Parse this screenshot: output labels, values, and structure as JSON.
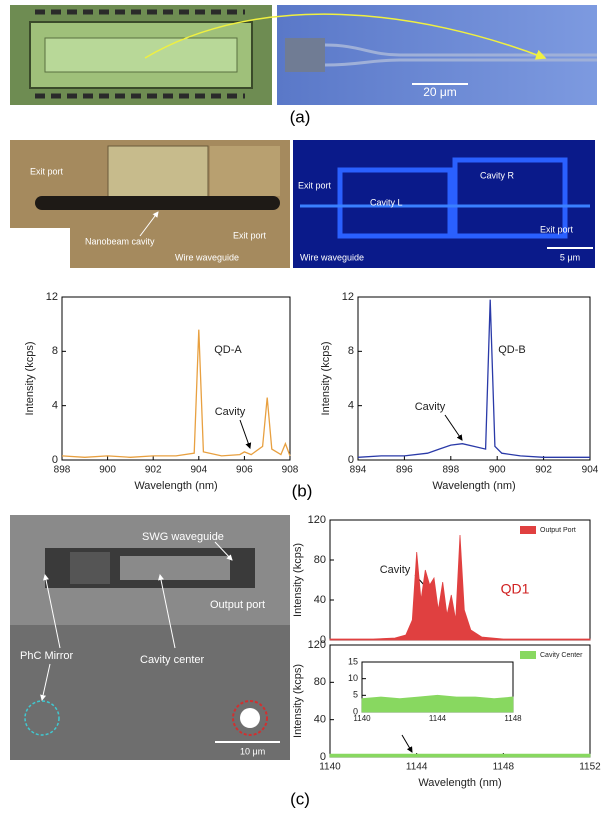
{
  "panels": {
    "a": {
      "label": "(a)",
      "scale": "20 μm"
    },
    "b": {
      "label": "(b)",
      "left": [
        "Exit port",
        "Nanobeam cavity",
        "Wire waveguide",
        "Exit port"
      ],
      "right": [
        "Exit port",
        "Cavity L",
        "Cavity R",
        "Exit port",
        "Wire waveguide",
        "5 μm"
      ]
    },
    "c": {
      "label": "(c)",
      "image": [
        "SWG waveguide",
        "Output port",
        "PhC Mirror",
        "Cavity center",
        "10 μm"
      ]
    }
  },
  "chart_data": [
    {
      "type": "line",
      "xlabel": "Wavelength (nm)",
      "ylabel": "Intensity (kcps)",
      "xlim": [
        898,
        908
      ],
      "xticks": [
        898,
        900,
        902,
        904,
        906,
        908
      ],
      "ylim": [
        0,
        12
      ],
      "yticks": [
        0,
        4,
        8,
        12
      ],
      "annotations": [
        "QD-A",
        "Cavity"
      ],
      "x": [
        898,
        899,
        900,
        901,
        902,
        903,
        903.8,
        904,
        904.2,
        905,
        905.8,
        906,
        906.3,
        906.8,
        907,
        907.2,
        907.6,
        907.8,
        908
      ],
      "series": [
        {
          "color": "#e8a040",
          "values": [
            0.3,
            0.2,
            0.3,
            0.2,
            0.3,
            0.3,
            0.5,
            9.6,
            0.6,
            0.3,
            0.4,
            0.6,
            0.4,
            1,
            4.6,
            0.8,
            0.4,
            1.2,
            0.3
          ]
        }
      ]
    },
    {
      "type": "line",
      "xlabel": "Wavelength (nm)",
      "ylabel": "Intensity (kcps)",
      "xlim": [
        894,
        904
      ],
      "xticks": [
        894,
        896,
        898,
        900,
        902,
        904
      ],
      "ylim": [
        0,
        12
      ],
      "yticks": [
        0,
        4,
        8,
        12
      ],
      "annotations": [
        "QD-B",
        "Cavity"
      ],
      "x": [
        894,
        895,
        896,
        897,
        897.5,
        898,
        898.5,
        899,
        899.5,
        899.7,
        899.9,
        900.2,
        901,
        902,
        903,
        904
      ],
      "series": [
        {
          "color": "#2a3aa8",
          "values": [
            0.2,
            0.3,
            0.3,
            0.5,
            0.8,
            1.1,
            1.2,
            1,
            0.8,
            11.8,
            1,
            0.5,
            0.3,
            0.2,
            0.2,
            0.2
          ]
        }
      ]
    },
    {
      "type": "area",
      "ylabel": "Intensity (kcps)",
      "xlim": [
        1140,
        1152
      ],
      "ylim": [
        0,
        120
      ],
      "yticks": [
        0,
        40,
        80,
        120
      ],
      "annotations": [
        "Cavity",
        "QD1"
      ],
      "legend": "upper right",
      "x": [
        1140,
        1142,
        1143,
        1143.5,
        1143.8,
        1144,
        1144.2,
        1144.4,
        1144.6,
        1144.8,
        1145,
        1145.2,
        1145.4,
        1145.6,
        1145.8,
        1146,
        1146.2,
        1146.5,
        1147,
        1148,
        1152
      ],
      "series": [
        {
          "name": "Output Port",
          "color": "#e04040",
          "values": [
            1,
            1,
            2,
            5,
            20,
            88,
            40,
            70,
            55,
            62,
            30,
            58,
            25,
            45,
            20,
            105,
            30,
            10,
            3,
            1,
            1
          ]
        }
      ]
    },
    {
      "type": "area",
      "xlabel": "Wavelength (nm)",
      "ylabel": "Intensity (kcps)",
      "xlim": [
        1140,
        1152
      ],
      "xticks": [
        1140,
        1144,
        1148,
        1152
      ],
      "ylim": [
        0,
        120
      ],
      "yticks": [
        0,
        40,
        80,
        120
      ],
      "legend": "upper right",
      "x": [
        1140,
        1144,
        1148,
        1152
      ],
      "series": [
        {
          "name": "Cavity Center",
          "color": "#88d860",
          "values": [
            3,
            3,
            3,
            3
          ]
        }
      ]
    },
    {
      "type": "area",
      "xlim": [
        1140,
        1148
      ],
      "xticks": [
        1140,
        1144,
        1148
      ],
      "ylim": [
        0,
        15
      ],
      "yticks": [
        0,
        5,
        10,
        15
      ],
      "x": [
        1140,
        1141,
        1142,
        1143,
        1144,
        1145,
        1146,
        1147,
        1148
      ],
      "series": [
        {
          "color": "#88d860",
          "values": [
            4,
            4.5,
            4,
            4.5,
            5,
            4.5,
            4.5,
            4,
            4.5
          ]
        }
      ]
    }
  ]
}
